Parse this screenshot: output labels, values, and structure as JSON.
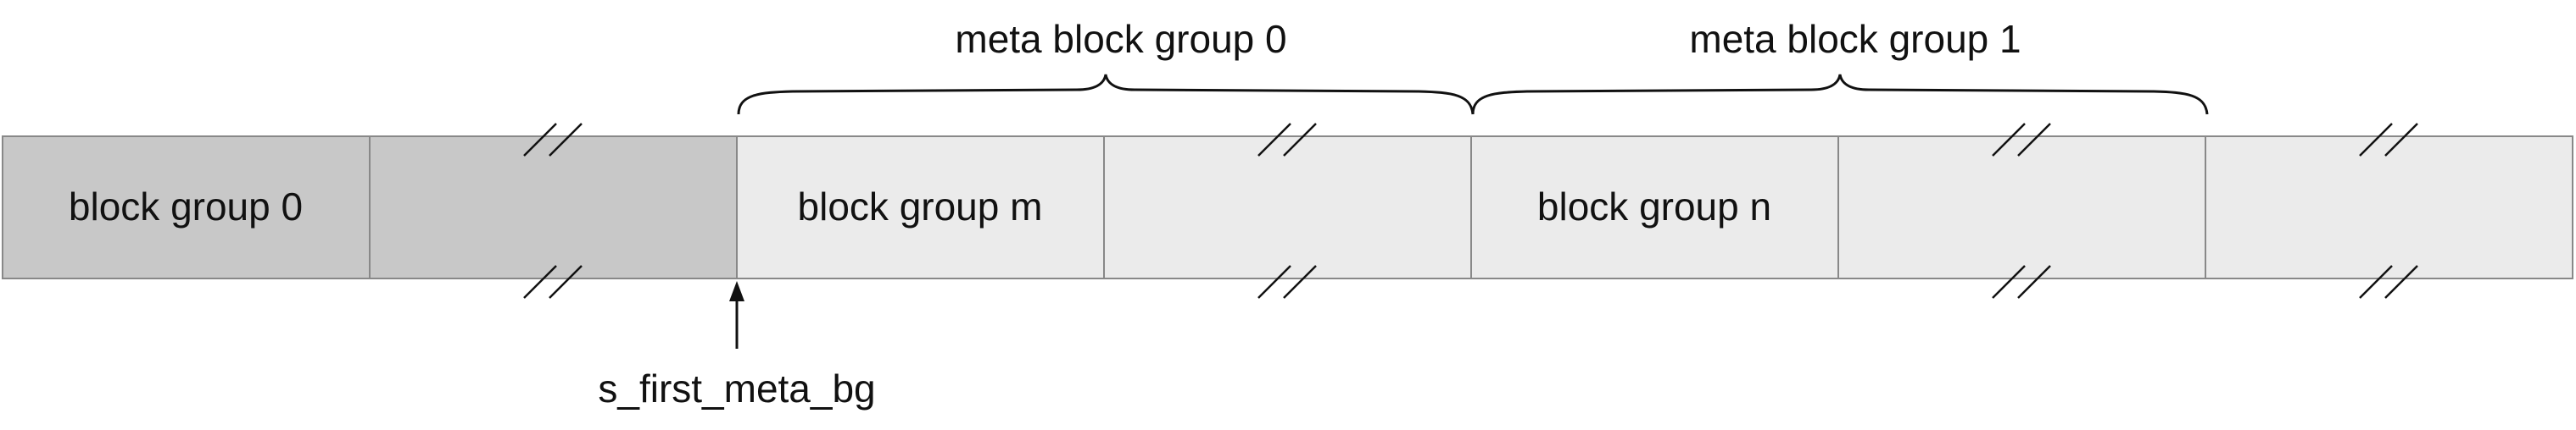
{
  "diagram": {
    "meta_group_labels": [
      "meta block group 0",
      "meta block group 1"
    ],
    "block_labels": [
      "block group 0",
      "",
      "block group m",
      "",
      "block group n",
      "",
      ""
    ],
    "pointer_label": "s_first_meta_bg",
    "colors": {
      "first_bg_fill": "#c8c8c8",
      "meta_bg_fill": "#ebebeb",
      "stroke": "#888888",
      "line": "#111111",
      "background": "#ffffff"
    }
  }
}
